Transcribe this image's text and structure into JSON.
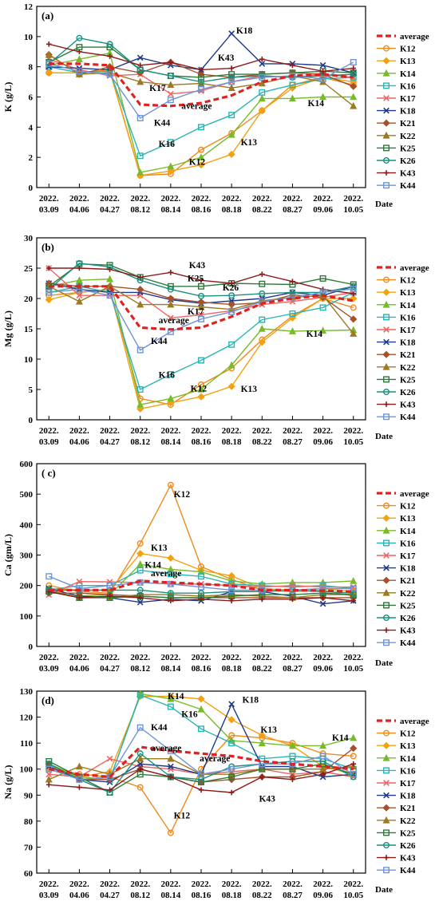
{
  "categories": [
    "2022.03.09",
    "2022.04.06",
    "2022.04.27",
    "2022.08.12",
    "2022.08.14",
    "2022.08.16",
    "2022.08.18",
    "2022.08.22",
    "2022.08.27",
    "2022.09.06",
    "2022.10.05"
  ],
  "category_lines": [
    [
      "2022.",
      "03.09"
    ],
    [
      "2022.",
      "04.06"
    ],
    [
      "2022.",
      "04.27"
    ],
    [
      "2022.",
      "08.12"
    ],
    [
      "2022.",
      "08.14"
    ],
    [
      "2022.",
      "08.16"
    ],
    [
      "2022.",
      "08.18"
    ],
    [
      "2022.",
      "08.22"
    ],
    [
      "2022.",
      "08.27"
    ],
    [
      "2022.",
      "09.06"
    ],
    [
      "2022.",
      "10.05"
    ]
  ],
  "xlabel": "Date",
  "styles": {
    "average": {
      "color": "#dd2222",
      "marker": "none",
      "dash": true
    },
    "K12": {
      "color": "#ee8a1c",
      "marker": "circle"
    },
    "K13": {
      "color": "#f4a010",
      "marker": "diamond"
    },
    "K14": {
      "color": "#78bb2a",
      "marker": "triangle"
    },
    "K16": {
      "color": "#2ab5b5",
      "marker": "square"
    },
    "K17": {
      "color": "#ef6464",
      "marker": "x"
    },
    "K18": {
      "color": "#1d3a8c",
      "marker": "x"
    },
    "K21": {
      "color": "#a8502a",
      "marker": "diamond"
    },
    "K22": {
      "color": "#9c7a20",
      "marker": "triangle"
    },
    "K25": {
      "color": "#2f7a3a",
      "marker": "square"
    },
    "K26": {
      "color": "#19907f",
      "marker": "circle"
    },
    "K43": {
      "color": "#8b1a1a",
      "marker": "plus"
    },
    "K44": {
      "color": "#6f95d8",
      "marker": "square"
    }
  },
  "legend": [
    "average",
    "K12",
    "K13",
    "K14",
    "K16",
    "K17",
    "K18",
    "K21",
    "K22",
    "K25",
    "K26",
    "K43",
    "K44"
  ],
  "chart_data": [
    {
      "type": "line",
      "panel": "(a)",
      "ylabel": "K (g/L)",
      "ylim": [
        0,
        12
      ],
      "yticks": [
        0,
        2,
        4,
        6,
        8,
        10,
        12
      ],
      "series": [
        {
          "name": "average",
          "values": [
            8.2,
            8.2,
            8.1,
            5.5,
            5.4,
            5.6,
            6.1,
            7.0,
            7.4,
            7.5,
            7.3
          ]
        },
        {
          "name": "K12",
          "values": [
            7.6,
            7.6,
            7.8,
            0.8,
            0.9,
            2.5,
            3.6,
            5.1,
            6.8,
            7.3,
            6.8
          ]
        },
        {
          "name": "K13",
          "values": [
            7.6,
            7.6,
            7.7,
            0.8,
            1.1,
            1.5,
            2.2,
            5.1,
            6.6,
            7.3,
            7.0
          ]
        },
        {
          "name": "K14",
          "values": [
            8.1,
            8.5,
            8.9,
            1.0,
            1.4,
            2.0,
            3.5,
            5.9,
            5.9,
            6.0,
            6.0
          ]
        },
        {
          "name": "K16",
          "values": [
            8.0,
            7.6,
            7.7,
            2.1,
            3.0,
            4.0,
            4.8,
            6.3,
            6.8,
            7.2,
            7.3
          ]
        },
        {
          "name": "K17",
          "values": [
            8.5,
            7.8,
            7.4,
            7.5,
            6.2,
            6.4,
            7.0,
            7.4,
            7.3,
            7.5,
            7.3
          ]
        },
        {
          "name": "K18",
          "values": [
            8.0,
            7.9,
            7.8,
            8.6,
            8.1,
            7.8,
            10.2,
            8.2,
            8.2,
            8.1,
            7.6
          ]
        },
        {
          "name": "K21",
          "values": [
            8.8,
            7.5,
            8.0,
            7.6,
            8.3,
            7.5,
            7.3,
            7.5,
            7.6,
            7.5,
            6.7
          ]
        },
        {
          "name": "K22",
          "values": [
            8.8,
            7.5,
            7.6,
            7.0,
            6.8,
            6.9,
            6.6,
            6.9,
            7.4,
            7.0,
            5.4
          ]
        },
        {
          "name": "K25",
          "values": [
            8.3,
            9.3,
            9.3,
            7.8,
            7.4,
            7.3,
            7.5,
            7.5,
            7.6,
            7.7,
            7.6
          ]
        },
        {
          "name": "K26",
          "values": [
            8.2,
            9.9,
            9.5,
            7.8,
            7.4,
            7.0,
            7.3,
            7.4,
            7.3,
            7.4,
            7.5
          ]
        },
        {
          "name": "K43",
          "values": [
            9.5,
            9.0,
            8.7,
            8.1,
            8.3,
            7.8,
            7.9,
            8.5,
            8.1,
            7.7,
            7.9
          ]
        },
        {
          "name": "K44",
          "values": [
            8.2,
            7.7,
            7.5,
            4.6,
            5.8,
            6.5,
            7.0,
            7.3,
            7.4,
            7.2,
            8.3
          ]
        }
      ],
      "annotations": [
        {
          "text": "K18",
          "x": 6.15,
          "y": 10.2
        },
        {
          "text": "K43",
          "x": 5.55,
          "y": 8.4
        },
        {
          "text": "K17",
          "x": 3.3,
          "y": 6.4
        },
        {
          "text": "average",
          "x": 4.35,
          "y": 5.2
        },
        {
          "text": "K44",
          "x": 3.45,
          "y": 4.1
        },
        {
          "text": "K14",
          "x": 8.5,
          "y": 5.4
        },
        {
          "text": "K16",
          "x": 3.6,
          "y": 2.7
        },
        {
          "text": "K12",
          "x": 4.6,
          "y": 1.5
        },
        {
          "text": "K13",
          "x": 6.3,
          "y": 2.8
        }
      ]
    },
    {
      "type": "line",
      "panel": "(b)",
      "ylabel": "Mg (g/L)",
      "ylim": [
        0,
        30
      ],
      "yticks": [
        0,
        5,
        10,
        15,
        20,
        25,
        30
      ],
      "series": [
        {
          "name": "average",
          "values": [
            22.0,
            22.0,
            22.0,
            15.2,
            14.9,
            15.2,
            17.0,
            19.2,
            20.0,
            20.5,
            19.6
          ]
        },
        {
          "name": "K12",
          "values": [
            20.5,
            21.0,
            21.5,
            3.5,
            2.5,
            5.8,
            8.5,
            13.2,
            17.1,
            20.0,
            18.5
          ]
        },
        {
          "name": "K13",
          "values": [
            19.8,
            21.0,
            21.5,
            1.8,
            2.8,
            3.8,
            5.5,
            12.8,
            16.8,
            20.0,
            20.0
          ]
        },
        {
          "name": "K14",
          "values": [
            22.0,
            23.0,
            23.2,
            2.5,
            3.5,
            5.0,
            9.0,
            15.0,
            14.6,
            14.7,
            14.8
          ]
        },
        {
          "name": "K16",
          "values": [
            21.0,
            22.0,
            21.0,
            5.0,
            7.5,
            9.8,
            12.4,
            16.5,
            17.5,
            18.5,
            21.0
          ]
        },
        {
          "name": "K17",
          "values": [
            25.0,
            20.5,
            20.5,
            20.5,
            16.8,
            17.3,
            18.0,
            19.0,
            19.5,
            20.2,
            21.0
          ]
        },
        {
          "name": "K18",
          "values": [
            22.5,
            21.5,
            21.0,
            21.0,
            19.8,
            19.2,
            19.6,
            20.0,
            21.0,
            20.5,
            22.0
          ]
        },
        {
          "name": "K21",
          "values": [
            22.5,
            22.0,
            22.0,
            21.5,
            20.0,
            19.4,
            19.0,
            19.3,
            20.6,
            20.2,
            16.6
          ]
        },
        {
          "name": "K22",
          "values": [
            22.0,
            19.5,
            22.0,
            19.0,
            19.0,
            18.6,
            18.2,
            19.6,
            20.2,
            20.5,
            14.2
          ]
        },
        {
          "name": "K25",
          "values": [
            22.0,
            25.7,
            25.5,
            23.5,
            22.0,
            22.0,
            22.5,
            22.4,
            22.3,
            23.3,
            22.3
          ]
        },
        {
          "name": "K26",
          "values": [
            21.5,
            25.8,
            25.2,
            23.0,
            21.5,
            20.4,
            20.5,
            20.8,
            21.0,
            21.0,
            22.0
          ]
        },
        {
          "name": "K43",
          "values": [
            25.0,
            25.0,
            24.8,
            23.5,
            24.3,
            23.0,
            22.5,
            24.0,
            22.8,
            21.5,
            20.8
          ]
        },
        {
          "name": "K44",
          "values": [
            21.0,
            21.5,
            20.5,
            11.5,
            14.5,
            16.6,
            17.8,
            19.5,
            20.2,
            21.0,
            21.6
          ]
        }
      ],
      "annotations": [
        {
          "text": "K43",
          "x": 4.6,
          "y": 25.0
        },
        {
          "text": "K25",
          "x": 4.55,
          "y": 22.8
        },
        {
          "text": "K26",
          "x": 5.7,
          "y": 21.3
        },
        {
          "text": "K17",
          "x": 4.55,
          "y": 17.4
        },
        {
          "text": "average",
          "x": 3.6,
          "y": 15.9
        },
        {
          "text": "K44",
          "x": 3.35,
          "y": 12.5
        },
        {
          "text": "K14",
          "x": 8.45,
          "y": 13.7
        },
        {
          "text": "K16",
          "x": 3.6,
          "y": 6.9
        },
        {
          "text": "K12",
          "x": 4.65,
          "y": 4.7
        },
        {
          "text": "K13",
          "x": 6.3,
          "y": 4.6
        }
      ]
    },
    {
      "type": "line",
      "panel": "( c)",
      "ylabel": "Ca (gm/L)",
      "ylim": [
        0,
        600
      ],
      "yticks": [
        0,
        100,
        200,
        300,
        400,
        500,
        600
      ],
      "series": [
        {
          "name": "average",
          "values": [
            185,
            185,
            185,
            215,
            210,
            205,
            200,
            185,
            185,
            183,
            180
          ]
        },
        {
          "name": "K12",
          "values": [
            200,
            180,
            175,
            338,
            530,
            262,
            220,
            185,
            180,
            185,
            165
          ]
        },
        {
          "name": "K13",
          "values": [
            190,
            185,
            185,
            305,
            290,
            250,
            232,
            190,
            185,
            190,
            180
          ]
        },
        {
          "name": "K14",
          "values": [
            190,
            165,
            170,
            270,
            253,
            245,
            215,
            205,
            210,
            210,
            215
          ]
        },
        {
          "name": "K16",
          "values": [
            185,
            200,
            200,
            250,
            238,
            230,
            205,
            200,
            195,
            200,
            190
          ]
        },
        {
          "name": "K17",
          "values": [
            170,
            213,
            212,
            210,
            205,
            205,
            200,
            195,
            200,
            195,
            195
          ]
        },
        {
          "name": "K18",
          "values": [
            190,
            165,
            160,
            145,
            155,
            150,
            180,
            180,
            165,
            140,
            150
          ]
        },
        {
          "name": "K21",
          "values": [
            175,
            175,
            170,
            165,
            160,
            160,
            160,
            160,
            160,
            160,
            160
          ]
        },
        {
          "name": "K22",
          "values": [
            185,
            160,
            160,
            170,
            170,
            165,
            170,
            165,
            160,
            170,
            170
          ]
        },
        {
          "name": "K25",
          "values": [
            180,
            160,
            160,
            165,
            160,
            160,
            165,
            170,
            170,
            175,
            170
          ]
        },
        {
          "name": "K26",
          "values": [
            185,
            185,
            185,
            185,
            175,
            175,
            180,
            180,
            185,
            180,
            175
          ]
        },
        {
          "name": "K43",
          "values": [
            180,
            160,
            165,
            160,
            150,
            155,
            150,
            155,
            155,
            160,
            150
          ]
        },
        {
          "name": "K44",
          "values": [
            230,
            190,
            200,
            210,
            205,
            195,
            185,
            185,
            185,
            190,
            190
          ]
        }
      ],
      "annotations": [
        {
          "text": "K12",
          "x": 4.1,
          "y": 490
        },
        {
          "text": "K13",
          "x": 3.35,
          "y": 315
        },
        {
          "text": "K14",
          "x": 3.15,
          "y": 258
        },
        {
          "text": "average",
          "x": 3.35,
          "y": 230
        }
      ]
    },
    {
      "type": "line",
      "panel": "(d)",
      "ylabel": "Na (g/L)",
      "ylim": [
        60,
        130
      ],
      "yticks": [
        60,
        70,
        80,
        90,
        100,
        110,
        120,
        130
      ],
      "series": [
        {
          "name": "average",
          "values": [
            100,
            98,
            97,
            108.5,
            107,
            106,
            105,
            103,
            102,
            101,
            100
          ]
        },
        {
          "name": "K12",
          "values": [
            101,
            98,
            97,
            93,
            75.5,
            100,
            113,
            112,
            110,
            106,
            105
          ]
        },
        {
          "name": "K13",
          "values": [
            100,
            97,
            99,
            128,
            128,
            127,
            119,
            113,
            109,
            101,
            98
          ]
        },
        {
          "name": "K14",
          "values": [
            102,
            97,
            96,
            129,
            127,
            123,
            111,
            110,
            109,
            109,
            112
          ]
        },
        {
          "name": "K16",
          "values": [
            102,
            96,
            96,
            128.5,
            124,
            115.5,
            110,
            104,
            105,
            104,
            100
          ]
        },
        {
          "name": "K17",
          "values": [
            98,
            97,
            104,
            101,
            100,
            98,
            99,
            100,
            98,
            99,
            97
          ]
        },
        {
          "name": "K18",
          "values": [
            101,
            96,
            95,
            102,
            101,
            98,
            125,
            101,
            101,
            97,
            98
          ]
        },
        {
          "name": "K21",
          "values": [
            102,
            96,
            96,
            100,
            97,
            95,
            96,
            97,
            97,
            99,
            108
          ]
        },
        {
          "name": "K22",
          "values": [
            96,
            101,
            98,
            104,
            104,
            98,
            98,
            100,
            100,
            100,
            101
          ]
        },
        {
          "name": "K25",
          "values": [
            103,
            97,
            91,
            98,
            97,
            95,
            97,
            100,
            100,
            102,
            98
          ]
        },
        {
          "name": "K26",
          "values": [
            102,
            96,
            91,
            106,
            97,
            96,
            101,
            102,
            103,
            103,
            97
          ]
        },
        {
          "name": "K43",
          "values": [
            94,
            93,
            92,
            100,
            97,
            92,
            91,
            97,
            96,
            98,
            102
          ]
        },
        {
          "name": "K44",
          "values": [
            100,
            96,
            97,
            116,
            107,
            98,
            100,
            102,
            102,
            105,
            98
          ]
        }
      ],
      "annotations": [
        {
          "text": "K18",
          "x": 6.35,
          "y": 125.5
        },
        {
          "text": "K14",
          "x": 3.9,
          "y": 127
        },
        {
          "text": "K16",
          "x": 4.35,
          "y": 120
        },
        {
          "text": "K44",
          "x": 3.35,
          "y": 115
        },
        {
          "text": "K13",
          "x": 6.95,
          "y": 114
        },
        {
          "text": "K14",
          "x": 9.3,
          "y": 111
        },
        {
          "text": "average",
          "x": 3.35,
          "y": 107
        },
        {
          "text": "average",
          "x": 4.95,
          "y": 103
        },
        {
          "text": "K43",
          "x": 6.9,
          "y": 87.5
        },
        {
          "text": "K12",
          "x": 4.1,
          "y": 81
        }
      ]
    }
  ]
}
